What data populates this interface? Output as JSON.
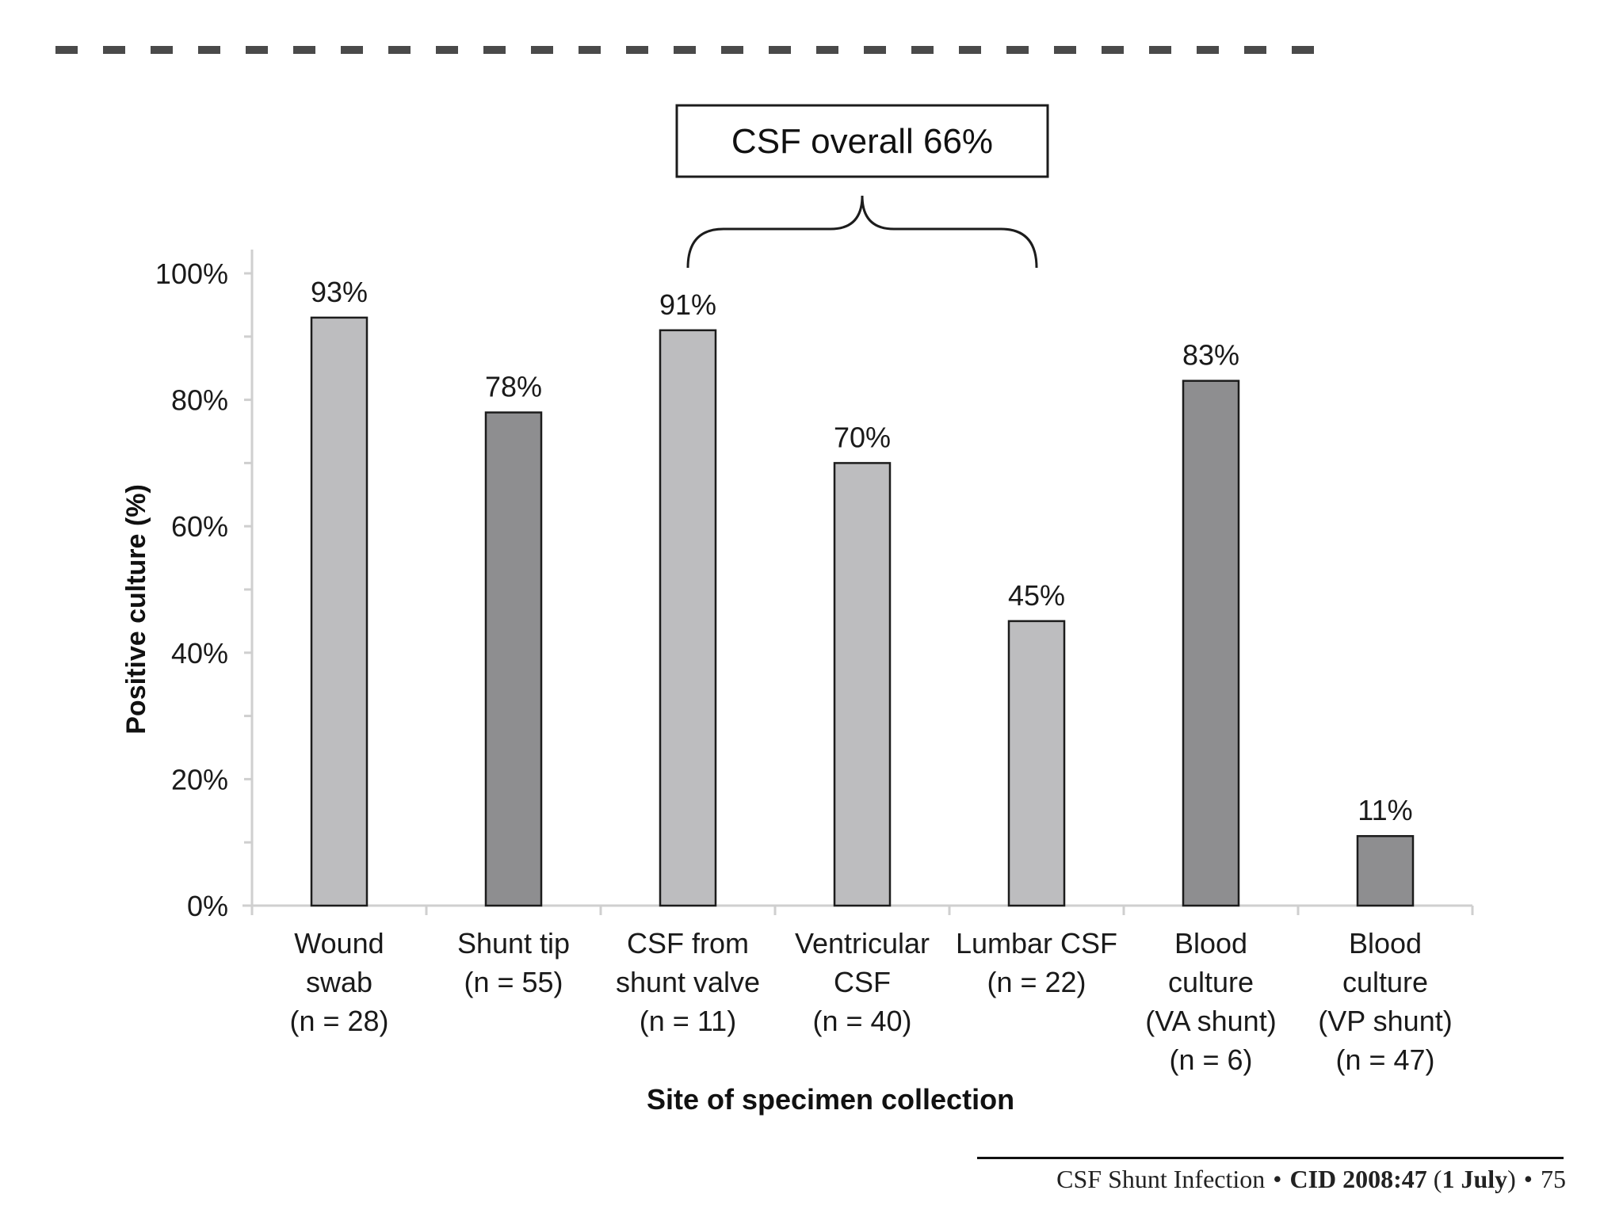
{
  "chart_data": {
    "type": "bar",
    "categories": [
      [
        "Wound",
        "swab",
        "(n = 28)"
      ],
      [
        "Shunt tip",
        "(n = 55)"
      ],
      [
        "CSF from",
        "shunt valve",
        "(n = 11)"
      ],
      [
        "Ventricular",
        "CSF",
        "(n = 40)"
      ],
      [
        "Lumbar CSF",
        "(n = 22)"
      ],
      [
        "Blood",
        "culture",
        "(VA shunt)",
        "(n = 6)"
      ],
      [
        "Blood",
        "culture",
        "(VP shunt)",
        "(n = 47)"
      ]
    ],
    "values": [
      93,
      78,
      91,
      70,
      45,
      83,
      11
    ],
    "data_labels": [
      "93%",
      "78%",
      "91%",
      "70%",
      "45%",
      "83%",
      "11%"
    ],
    "bar_colors": [
      "#bdbdbf",
      "#8e8e90",
      "#bdbdbf",
      "#bdbdbf",
      "#bdbdbf",
      "#8e8e90",
      "#8e8e90"
    ],
    "ylim": [
      0,
      100
    ],
    "yticks": [
      0,
      20,
      40,
      60,
      80,
      100
    ],
    "ytick_labels": [
      "0%",
      "20%",
      "40%",
      "60%",
      "80%",
      "100%"
    ],
    "xlabel": "Site of specimen collection",
    "ylabel": "Positive culture (%)",
    "annotation": {
      "text": "CSF overall 66%",
      "bracket_from_category": 2,
      "bracket_to_category": 4
    },
    "grid": false,
    "legend": "none"
  },
  "footer": {
    "left": "CSF Shunt Infection",
    "journal": "CID",
    "volume": "2008:47",
    "date": "1",
    "month": "July",
    "page": "75"
  }
}
